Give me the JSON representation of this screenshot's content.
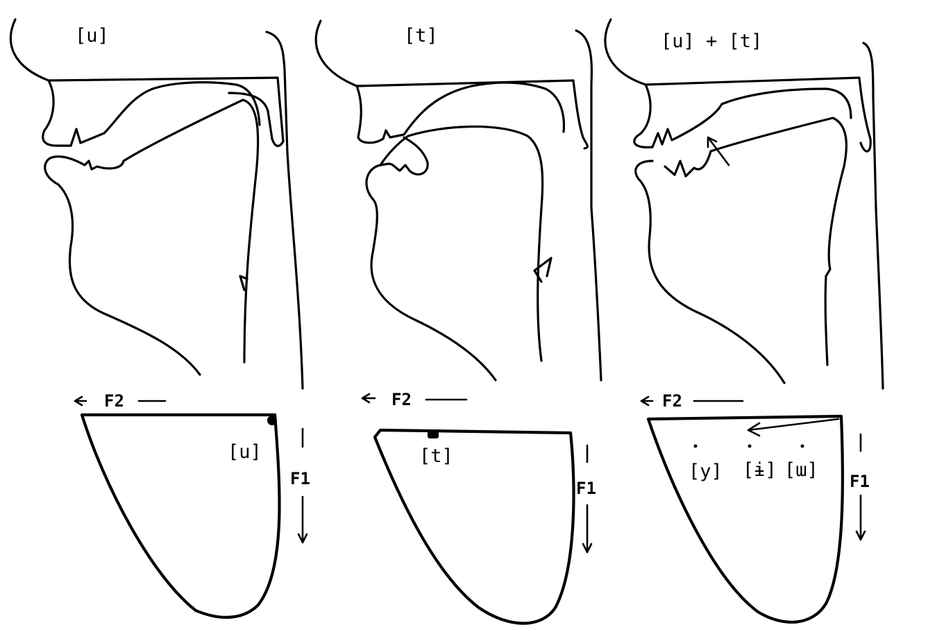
{
  "panels": [
    {
      "title": "[u]",
      "f2_label": "F2",
      "f1_label": "F1",
      "points": [
        "[u]"
      ]
    },
    {
      "title": "[t]",
      "f2_label": "F2",
      "f1_label": "F1",
      "points": [
        "[t]"
      ]
    },
    {
      "title": "[u] + [t]",
      "f2_label": "F2",
      "f1_label": "F1",
      "points": [
        "[y]",
        "[ɨ]",
        "[ɯ]"
      ]
    }
  ]
}
